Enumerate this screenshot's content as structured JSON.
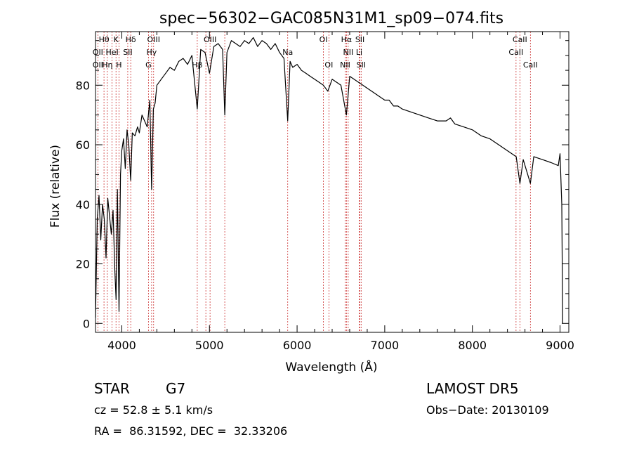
{
  "chart_data": {
    "type": "line",
    "title": "spec−56302−GAC085N31M1_sp09−074.fits",
    "xlabel": "Wavelength (Å)",
    "ylabel": "Flux (relative)",
    "xlim": [
      3700,
      9100
    ],
    "ylim": [
      -3,
      98
    ],
    "xticks": [
      4000,
      5000,
      6000,
      7000,
      8000,
      9000
    ],
    "yticks": [
      0,
      20,
      40,
      60,
      80
    ],
    "grid": false,
    "series": [
      {
        "x": [
          3700,
          3720,
          3740,
          3760,
          3780,
          3800,
          3820,
          3840,
          3860,
          3880,
          3900,
          3920,
          3935,
          3950,
          3968,
          3985,
          4000,
          4020,
          4040,
          4060,
          4080,
          4101,
          4120,
          4150,
          4180,
          4200,
          4230,
          4260,
          4290,
          4320,
          4340,
          4360,
          4380,
          4400,
          4450,
          4500,
          4550,
          4600,
          4650,
          4700,
          4750,
          4800,
          4861,
          4900,
          4950,
          5000,
          5050,
          5100,
          5150,
          5175,
          5200,
          5250,
          5300,
          5350,
          5400,
          5450,
          5500,
          5550,
          5600,
          5650,
          5700,
          5750,
          5800,
          5850,
          5893,
          5920,
          5950,
          6000,
          6050,
          6100,
          6150,
          6200,
          6250,
          6300,
          6350,
          6400,
          6450,
          6500,
          6563,
          6600,
          6650,
          6700,
          6750,
          6800,
          6850,
          6900,
          6950,
          7000,
          7050,
          7100,
          7150,
          7200,
          7300,
          7400,
          7500,
          7600,
          7700,
          7750,
          7800,
          7900,
          8000,
          8100,
          8200,
          8300,
          8400,
          8500,
          8542,
          8580,
          8662,
          8700,
          8800,
          8900,
          8980,
          9000,
          9020,
          9030
        ],
        "y": [
          2,
          35,
          43,
          28,
          40,
          35,
          22,
          42,
          36,
          30,
          38,
          18,
          8,
          45,
          4,
          50,
          58,
          62,
          52,
          65,
          60,
          48,
          64,
          63,
          66,
          64,
          70,
          68,
          66,
          75,
          45,
          72,
          74,
          80,
          82,
          84,
          86,
          85,
          88,
          89,
          87,
          90,
          72,
          92,
          91,
          84,
          93,
          94,
          92,
          70,
          91,
          95,
          94,
          93,
          95,
          94,
          96,
          93,
          95,
          94,
          92,
          94,
          91,
          89,
          68,
          88,
          86,
          87,
          85,
          84,
          83,
          82,
          81,
          80,
          78,
          82,
          81,
          80,
          70,
          83,
          82,
          81,
          80,
          79,
          78,
          77,
          76,
          75,
          75,
          73,
          73,
          72,
          71,
          70,
          69,
          68,
          68,
          69,
          67,
          66,
          65,
          63,
          62,
          60,
          58,
          56,
          47,
          55,
          47,
          56,
          55,
          54,
          53,
          57,
          40,
          0
        ]
      }
    ],
    "line_labels": [
      {
        "text": "Hθ",
        "x": 3797,
        "row": 0
      },
      {
        "text": "K",
        "x": 3934,
        "row": 0
      },
      {
        "text": "Hδ",
        "x": 4102,
        "row": 0
      },
      {
        "text": "OIII",
        "x": 4363,
        "row": 0
      },
      {
        "text": "OIII",
        "x": 5007,
        "row": 0
      },
      {
        "text": "OI",
        "x": 6300,
        "row": 0
      },
      {
        "text": "Hα",
        "x": 6563,
        "row": 0
      },
      {
        "text": "SII",
        "x": 6717,
        "row": 0
      },
      {
        "text": "CaII",
        "x": 8542,
        "row": 0
      },
      {
        "text": "OII",
        "x": 3727,
        "row": 1
      },
      {
        "text": "HeI",
        "x": 3889,
        "row": 1
      },
      {
        "text": "SII",
        "x": 4068,
        "row": 1
      },
      {
        "text": "Hγ",
        "x": 4340,
        "row": 1
      },
      {
        "text": "Na",
        "x": 5893,
        "row": 1
      },
      {
        "text": "NII",
        "x": 6583,
        "row": 1
      },
      {
        "text": "Li",
        "x": 6708,
        "row": 1
      },
      {
        "text": "CaII",
        "x": 8498,
        "row": 1
      },
      {
        "text": "OII",
        "x": 3727,
        "row": 2
      },
      {
        "text": "Hη",
        "x": 3835,
        "row": 2
      },
      {
        "text": "H",
        "x": 3968,
        "row": 2
      },
      {
        "text": "G",
        "x": 4304,
        "row": 2
      },
      {
        "text": "Hβ",
        "x": 4861,
        "row": 2
      },
      {
        "text": "OI",
        "x": 6363,
        "row": 2
      },
      {
        "text": "NII",
        "x": 6548,
        "row": 2
      },
      {
        "text": "SII",
        "x": 6731,
        "row": 2
      },
      {
        "text": "CaII",
        "x": 8662,
        "row": 2
      }
    ],
    "marker_lines": [
      3727,
      3797,
      3835,
      3889,
      3934,
      3968,
      4068,
      4102,
      4304,
      4340,
      4363,
      4861,
      4959,
      5007,
      5175,
      5893,
      6300,
      6363,
      6548,
      6563,
      6583,
      6708,
      6717,
      6731,
      8498,
      8542,
      8662
    ],
    "colors": {
      "spectrum": "#000000",
      "marker_line": "#cc3333",
      "axes": "#000000"
    }
  },
  "footer": {
    "object_class": "STAR",
    "subclass": "G7",
    "redshift": "cz = 52.8 ± 5.1 km/s",
    "coords": "RA =  86.31592, DEC =  32.33206",
    "survey": "LAMOST DR5",
    "obs_date": "Obs−Date: 20130109"
  }
}
